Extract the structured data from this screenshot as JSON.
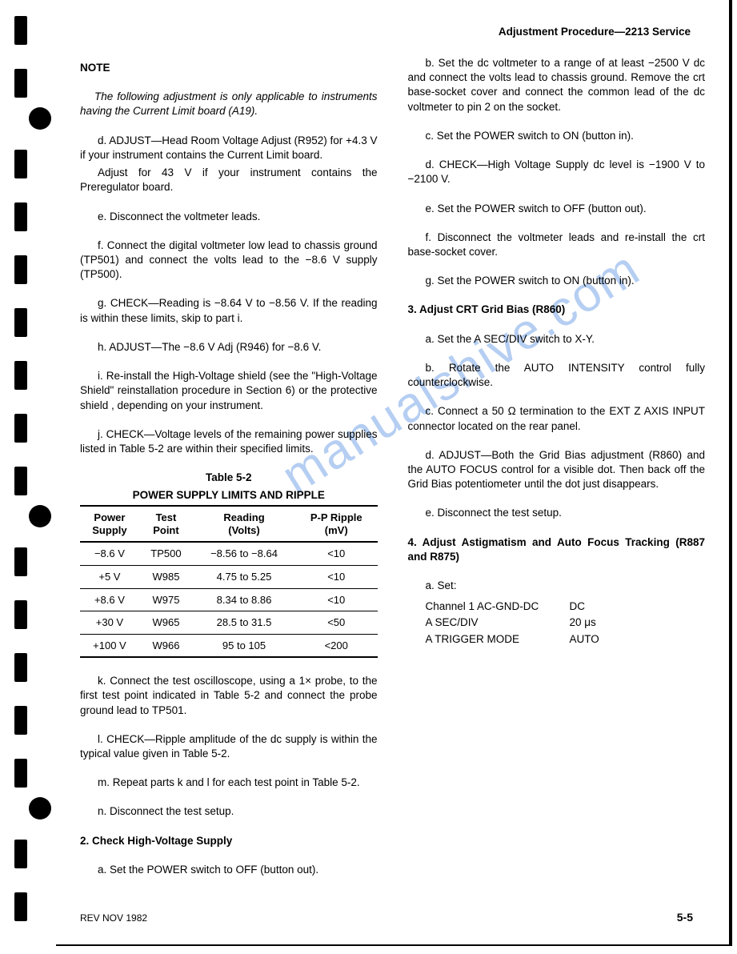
{
  "header": "Adjustment Procedure—2213 Service",
  "watermark": "manualshive.com",
  "note": {
    "title": "NOTE",
    "body": "The following adjustment is only applicable to instruments having the Current Limit board (A19)."
  },
  "left": {
    "d": "d. ADJUST—Head Room Voltage Adjust (R952) for +4.3 V if your instrument contains the Current Limit board.",
    "d2": "Adjust for 43 V if your instrument contains the Preregulator board.",
    "e": "e. Disconnect the voltmeter leads.",
    "f": "f. Connect the digital voltmeter low lead to chassis ground (TP501) and connect the volts lead to the −8.6 V supply (TP500).",
    "g": "g. CHECK—Reading is −8.64 V to −8.56 V. If the reading is within these limits, skip to part i.",
    "h": "h. ADJUST—The −8.6 V Adj (R946) for −8.6 V.",
    "i": "i. Re-install the High-Voltage shield (see the \"High-Voltage Shield\" reinstallation procedure in Section 6) or the protective shield , depending on your instrument.",
    "j": "j. CHECK—Voltage levels of the remaining power supplies listed in Table 5-2 are within their specified limits.",
    "k": "k. Connect the test oscilloscope, using a 1× probe, to the first test point indicated in Table 5-2 and connect the probe ground lead to TP501.",
    "l": "l. CHECK—Ripple amplitude of the dc supply is within the typical value given in Table 5-2.",
    "m": "m. Repeat parts k and l for each test point in Table 5-2."
  },
  "table": {
    "title1": "Table 5-2",
    "title2": "POWER SUPPLY LIMITS AND RIPPLE",
    "columns": [
      "Power Supply",
      "Test Point",
      "Reading (Volts)",
      "P-P Ripple (mV)"
    ],
    "col_headers_split": [
      [
        "Power",
        "Supply"
      ],
      [
        "Test",
        "Point"
      ],
      [
        "Reading",
        "(Volts)"
      ],
      [
        "P-P Ripple",
        "(mV)"
      ]
    ],
    "rows": [
      [
        "−8.6 V",
        "TP500",
        "−8.56 to −8.64",
        "<10"
      ],
      [
        "+5 V",
        "W985",
        "4.75 to 5.25",
        "<10"
      ],
      [
        "+8.6 V",
        "W975",
        "8.34 to 8.86",
        "<10"
      ],
      [
        "+30 V",
        "W965",
        "28.5 to 31.5",
        "<50"
      ],
      [
        "+100 V",
        "W966",
        "95 to 105",
        "<200"
      ]
    ]
  },
  "right": {
    "n": "n. Disconnect the test setup.",
    "s2": {
      "head": "2. Check High-Voltage Supply",
      "a": "a. Set the POWER switch to OFF (button out).",
      "b": "b. Set the dc voltmeter to a range of at least −2500 V dc and connect the volts lead to chassis ground. Remove the crt base-socket cover and connect the common lead of the dc voltmeter to pin 2 on the socket.",
      "c": "c. Set the POWER switch to ON (button in).",
      "d": "d. CHECK—High Voltage Supply dc level is −1900 V to −2100 V.",
      "e": "e. Set the POWER switch to OFF (button out).",
      "f": "f. Disconnect the voltmeter leads and re-install the crt base-socket cover.",
      "g": "g. Set the POWER switch to ON (button in)."
    },
    "s3": {
      "head": "3. Adjust CRT Grid Bias (R860)",
      "a": "a. Set the A SEC/DIV switch to X-Y.",
      "b": "b. Rotate the AUTO INTENSITY control fully counterclockwise.",
      "c": "c. Connect a 50 Ω termination to the EXT Z AXIS INPUT connector located on the rear panel.",
      "d": "d. ADJUST—Both the Grid Bias adjustment (R860) and the AUTO FOCUS control for a visible dot. Then back off the Grid Bias potentiometer until the dot just disappears.",
      "e": "e. Disconnect the test setup."
    },
    "s4": {
      "head": "4. Adjust Astigmatism and Auto Focus Tracking (R887 and R875)",
      "a": "a. Set:",
      "kv": [
        {
          "k": "Channel 1 AC-GND-DC",
          "v": "DC"
        },
        {
          "k": "A SEC/DIV",
          "v": "20 μs"
        },
        {
          "k": "A TRIGGER MODE",
          "v": "AUTO"
        }
      ]
    }
  },
  "footer": {
    "left": "REV NOV 1982",
    "right": "5-5"
  },
  "colors": {
    "text": "#000000",
    "bg": "#ffffff",
    "watermark": "#7aa7e8"
  }
}
